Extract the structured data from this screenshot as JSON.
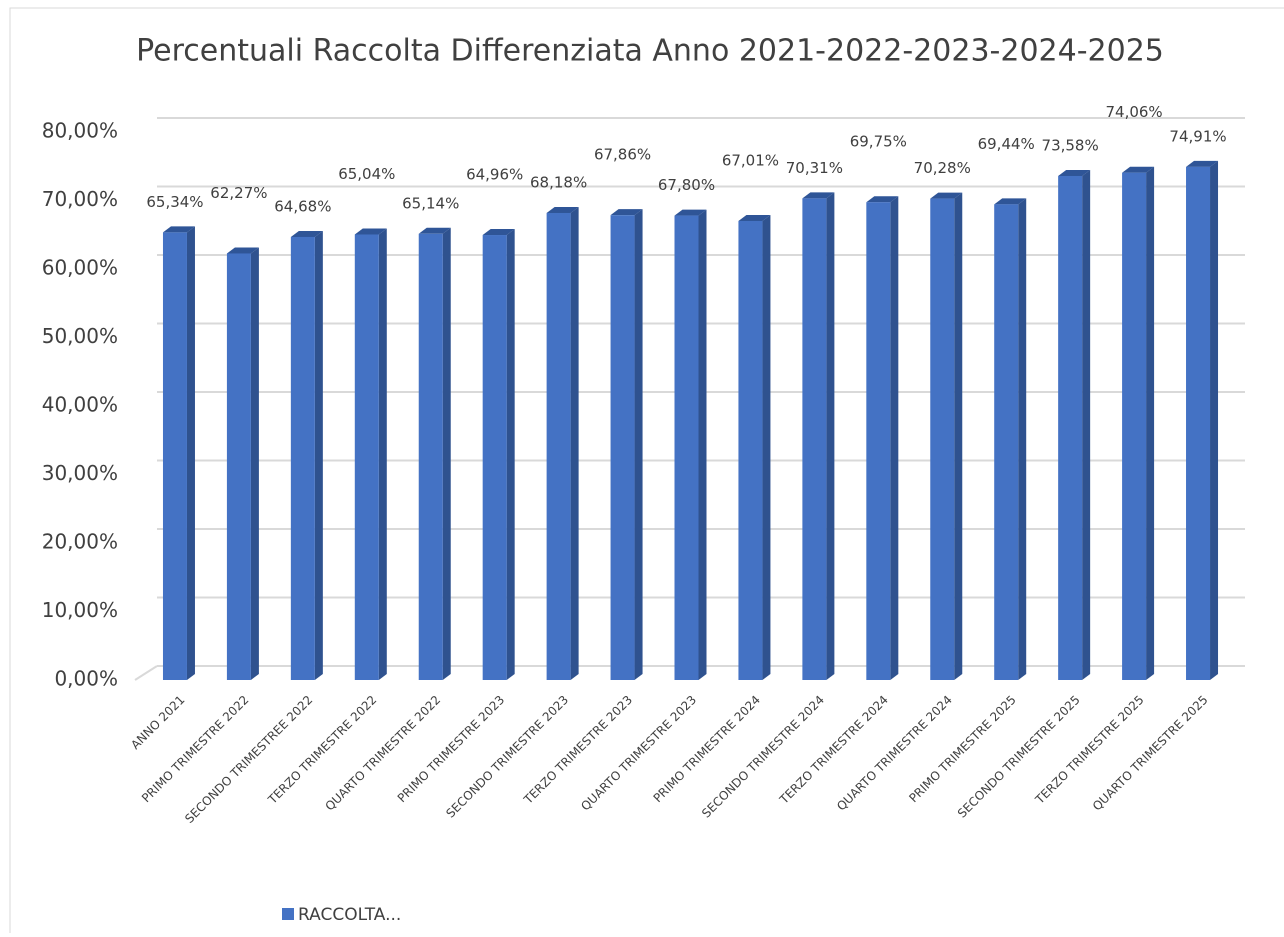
{
  "chart_data": {
    "type": "bar3d",
    "title": "Percentuali Raccolta Differenziata Anno 2021-2022-2023-2024-2025",
    "categories": [
      "ANNO 2021",
      "PRIMO TRIMESTRE 2022",
      "SECONDO TRIMESTREE 2022",
      "TERZO TRIMESTRE 2022",
      "QUARTO TRIMESTRE 2022",
      "PRIMO TRIMESTRE 2023",
      "SECONDO TRIMESTRE 2023",
      "TERZO TRIMESTRE 2023",
      "QUARTO TRIMESTRE 2023",
      "PRIMO TRIMESTRE 2024",
      "SECONDO TRIMESTRE 2024",
      "TERZO TRIMESTRE 2024",
      "QUARTO TRIMESTRE 2024",
      "PRIMO TRIMESTRE 2025",
      "SECONDO TRIMESTRE 2025",
      "TERZO TRIMESTRE 2025",
      "QUARTO TRIMESTRE 2025"
    ],
    "series": [
      {
        "name": "RACCOLTA...",
        "color": "#4472c4",
        "values": [
          65.34,
          62.27,
          64.68,
          65.04,
          65.14,
          64.96,
          68.18,
          67.86,
          67.8,
          67.01,
          70.31,
          69.75,
          70.28,
          69.44,
          73.58,
          74.06,
          74.91
        ],
        "value_labels": [
          "65,34%",
          "62,27%",
          "64,68%",
          "65,04%",
          "65,14%",
          "64,96%",
          "68,18%",
          "67,86%",
          "67,80%",
          "67,01%",
          "70,31%",
          "69,75%",
          "70,28%",
          "69,44%",
          "73,58%",
          "74,06%",
          "74,91%"
        ]
      }
    ],
    "ylim": [
      0,
      80
    ],
    "yticks": [
      {
        "value": 0,
        "label": "0,00%"
      },
      {
        "value": 10,
        "label": "10,00%"
      },
      {
        "value": 20,
        "label": "20,00%"
      },
      {
        "value": 30,
        "label": "30,00%"
      },
      {
        "value": 40,
        "label": "40,00%"
      },
      {
        "value": 50,
        "label": "50,00%"
      },
      {
        "value": 60,
        "label": "60,00%"
      },
      {
        "value": 70,
        "label": "70,00%"
      },
      {
        "value": 80,
        "label": "80,00%"
      }
    ],
    "grid": true
  }
}
